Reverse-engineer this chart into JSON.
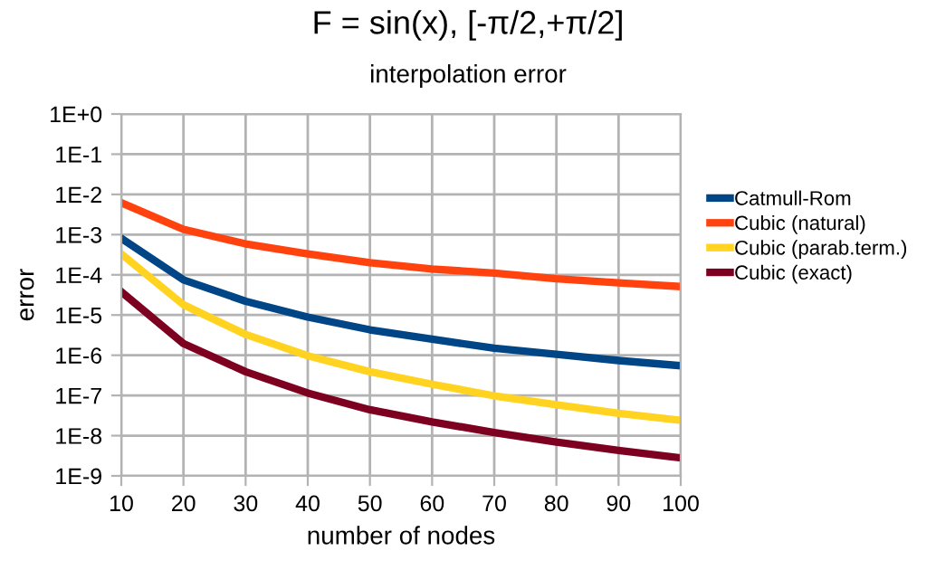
{
  "chart_data": {
    "type": "line",
    "title": "F = sin(x), [-π/2,+π/2]",
    "subtitle": "interpolation error",
    "xlabel": "number of nodes",
    "ylabel": "error",
    "x": [
      10,
      20,
      30,
      40,
      50,
      60,
      70,
      80,
      90,
      100
    ],
    "series": [
      {
        "name": "Catmull-Rom",
        "color": "#004586",
        "values": [
          0.00081,
          7.5e-05,
          2.2e-05,
          8.9e-06,
          4.3e-06,
          2.5e-06,
          1.5e-06,
          1.05e-06,
          7.4e-07,
          5.5e-07
        ]
      },
      {
        "name": "Cubic (natural)",
        "color": "#ff420e",
        "values": [
          0.0062,
          0.00135,
          0.00059,
          0.00033,
          0.0002,
          0.00014,
          0.00011,
          8e-05,
          6.3e-05,
          5.1e-05
        ]
      },
      {
        "name": "Cubic (parab.term.)",
        "color": "#ffd320",
        "values": [
          0.00033,
          1.8e-05,
          3.3e-06,
          9.7e-07,
          3.9e-07,
          1.9e-07,
          9.8e-08,
          5.9e-08,
          3.6e-08,
          2.4e-08
        ]
      },
      {
        "name": "Cubic (exact)",
        "color": "#7e0021",
        "values": [
          3.8e-05,
          1.95e-06,
          3.9e-07,
          1.15e-07,
          4.4e-08,
          2.2e-08,
          1.2e-08,
          6.9e-09,
          4.3e-09,
          2.8e-09
        ]
      }
    ],
    "log": "y",
    "xlim": [
      10,
      100
    ],
    "xticks": [
      10,
      20,
      30,
      40,
      50,
      60,
      70,
      80,
      90,
      100
    ],
    "ylim": [
      1e-09,
      1
    ],
    "yticks": [
      {
        "value": 1e-09,
        "label": "1E-9"
      },
      {
        "value": 1e-08,
        "label": "1E-8"
      },
      {
        "value": 1e-07,
        "label": "1E-7"
      },
      {
        "value": 1e-06,
        "label": "1E-6"
      },
      {
        "value": 1e-05,
        "label": "1E-5"
      },
      {
        "value": 0.0001,
        "label": "1E-4"
      },
      {
        "value": 0.001,
        "label": "1E-3"
      },
      {
        "value": 0.01,
        "label": "1E-2"
      },
      {
        "value": 0.1,
        "label": "1E-1"
      },
      {
        "value": 1,
        "label": "1E+0"
      }
    ],
    "grid": true,
    "legend": "right",
    "marker": "none",
    "line_style": "solid"
  }
}
